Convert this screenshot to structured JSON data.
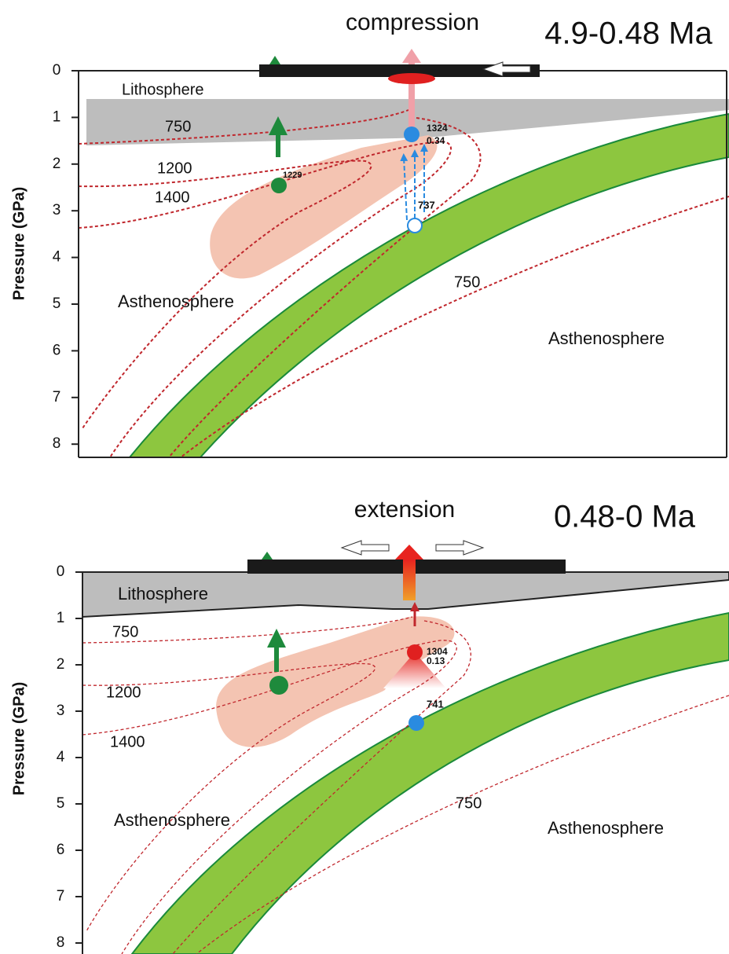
{
  "panels": [
    {
      "process": "compression",
      "period": "4.9-0.48 Ma",
      "y_axis": {
        "label": "Pressure (GPa)",
        "ticks": [
          0,
          1,
          2,
          3,
          4,
          5,
          6,
          7,
          8
        ]
      },
      "labels": [
        "Lithosphere",
        "750",
        "1200",
        "1400",
        "1229",
        "1324",
        "0.34",
        "737",
        "Asthenosphere",
        "750",
        "Asthenosphere"
      ]
    },
    {
      "process": "extension",
      "period": "0.48-0 Ma",
      "y_axis": {
        "label": "Pressure (GPa)",
        "ticks": [
          0,
          1,
          2,
          3,
          4,
          5,
          6,
          7,
          8
        ]
      },
      "labels": [
        "Lithosphere",
        "750",
        "1200",
        "1400",
        "1304",
        "0.13",
        "741",
        "Asthenosphere",
        "750",
        "Asthenosphere"
      ]
    }
  ]
}
